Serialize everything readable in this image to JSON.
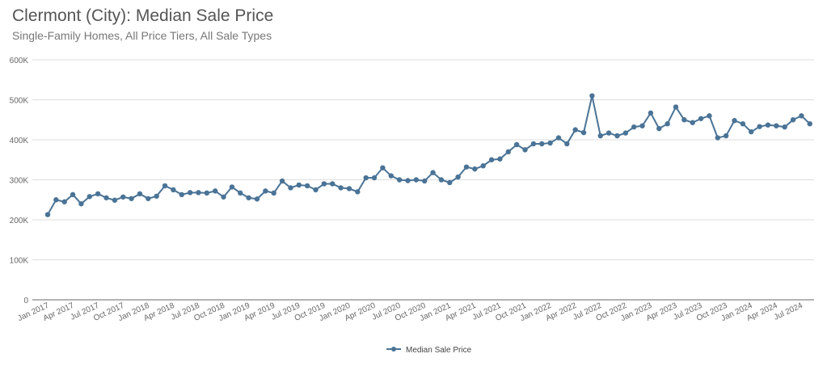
{
  "chart_data": {
    "type": "line",
    "title": "Clermont (City): Median Sale Price",
    "subtitle": "Single-Family Homes, All Price Tiers, All Sale Types",
    "xlabel": "",
    "ylabel": "",
    "start": "Jan 2017",
    "frequency": "monthly",
    "ylim": [
      0,
      600000
    ],
    "yticks": [
      "0",
      "100K",
      "200K",
      "300K",
      "400K",
      "500K",
      "600K"
    ],
    "xticks": [
      "Jan 2017",
      "Apr 2017",
      "Jul 2017",
      "Oct 2017",
      "Jan 2018",
      "Apr 2018",
      "Jul 2018",
      "Oct 2018",
      "Jan 2019",
      "Apr 2019",
      "Jul 2019",
      "Oct 2019",
      "Jan 2020",
      "Apr 2020",
      "Jul 2020",
      "Oct 2020",
      "Jan 2021",
      "Apr 2021",
      "Jul 2021",
      "Oct 2021",
      "Jan 2022",
      "Apr 2022",
      "Jul 2022",
      "Oct 2022",
      "Jan 2023",
      "Apr 2023",
      "Jul 2023",
      "Oct 2023",
      "Jan 2024",
      "Apr 2024",
      "Jul 2024"
    ],
    "grid": true,
    "legend": "bottom",
    "color": "#4a7396",
    "series": [
      {
        "name": "Median Sale Price",
        "values": [
          213000,
          250000,
          245000,
          263000,
          240000,
          258000,
          265000,
          255000,
          249000,
          257000,
          253000,
          265000,
          253000,
          259000,
          285000,
          275000,
          263000,
          268000,
          268000,
          267000,
          272000,
          257000,
          282000,
          267000,
          255000,
          252000,
          272000,
          267000,
          297000,
          280000,
          287000,
          285000,
          275000,
          290000,
          290000,
          280000,
          278000,
          270000,
          305000,
          305000,
          330000,
          310000,
          300000,
          298000,
          300000,
          297000,
          318000,
          300000,
          293000,
          307000,
          332000,
          327000,
          335000,
          350000,
          352000,
          370000,
          388000,
          375000,
          390000,
          390000,
          392000,
          405000,
          390000,
          425000,
          418000,
          510000,
          410000,
          417000,
          410000,
          417000,
          432000,
          435000,
          467000,
          428000,
          440000,
          482000,
          450000,
          443000,
          453000,
          460000,
          405000,
          410000,
          448000,
          440000,
          420000,
          433000,
          437000,
          435000,
          432000,
          450000,
          460000,
          440000
        ]
      }
    ]
  }
}
